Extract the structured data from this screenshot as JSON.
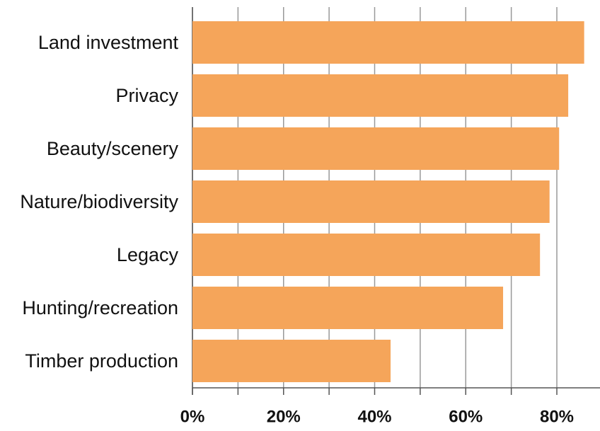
{
  "chart_data": {
    "type": "bar",
    "orientation": "horizontal",
    "categories": [
      "Land investment",
      "Privacy",
      "Beauty/scenery",
      "Nature/biodiversity",
      "Legacy",
      "Hunting/recreation",
      "Timber production"
    ],
    "values": [
      86,
      82.5,
      80.5,
      78.4,
      76.3,
      68.2,
      43.5
    ],
    "color": "#f5a55a",
    "xlim": [
      0,
      89
    ],
    "xticks": [
      {
        "value": 0,
        "label": "0%"
      },
      {
        "value": 20,
        "label": "20%"
      },
      {
        "value": 40,
        "label": "40%"
      },
      {
        "value": 60,
        "label": "60%"
      },
      {
        "value": 80,
        "label": "80%"
      }
    ],
    "minor_xticks": [
      10,
      30,
      50,
      70
    ],
    "grid": true
  }
}
